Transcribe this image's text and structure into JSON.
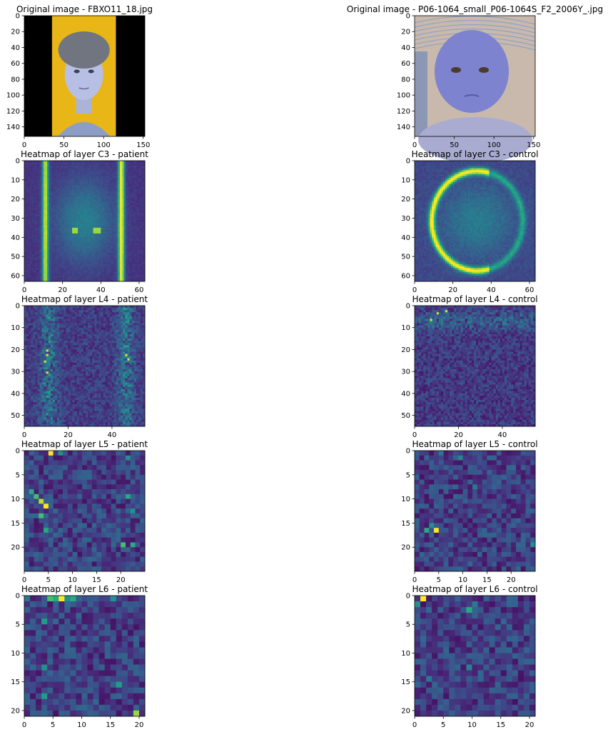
{
  "figure": {
    "background": "#ffffff",
    "colormap": "viridis",
    "colormap_stops": [
      "#440154",
      "#482878",
      "#3e4989",
      "#31688e",
      "#26828e",
      "#1f9e89",
      "#35b779",
      "#6ece58",
      "#b5de2b",
      "#fde725"
    ]
  },
  "chart_data": [
    {
      "type": "image",
      "title": "Original image - FBXO11_18.jpg",
      "content": "photo of a child with grey curly hair, blue-tinted skin, yellow background bordered by black vertical bands",
      "xlim": [
        0,
        152
      ],
      "ylim": [
        152,
        0
      ],
      "xticks": [
        0,
        50,
        100,
        150
      ],
      "yticks": [
        0,
        20,
        40,
        60,
        80,
        100,
        120,
        140
      ]
    },
    {
      "type": "image",
      "title": "Original image - P06-1064_small_P06-1064S_F2_2006Y_.jpg",
      "content": "photo of an infant with blue-tinted face lying on a knitted blanket",
      "xlim": [
        0,
        152
      ],
      "ylim": [
        152,
        0
      ],
      "xticks": [
        0,
        50,
        100,
        150
      ],
      "yticks": [
        0,
        20,
        40,
        60,
        80,
        100,
        120,
        140
      ]
    },
    {
      "type": "heatmap",
      "title": "Heatmap of layer C3 - patient",
      "grid_size": 63,
      "xlim": [
        0,
        63
      ],
      "ylim": [
        63,
        0
      ],
      "xticks": [
        0,
        20,
        40,
        60
      ],
      "yticks": [
        0,
        10,
        20,
        30,
        40,
        50,
        60
      ]
    },
    {
      "type": "heatmap",
      "title": "Heatmap of layer C3 - control",
      "grid_size": 63,
      "xlim": [
        0,
        63
      ],
      "ylim": [
        63,
        0
      ],
      "xticks": [
        0,
        20,
        40,
        60
      ],
      "yticks": [
        0,
        10,
        20,
        30,
        40,
        50,
        60
      ]
    },
    {
      "type": "heatmap",
      "title": "Heatmap of layer L4 - patient",
      "grid_size": 55,
      "xlim": [
        0,
        55
      ],
      "ylim": [
        55,
        0
      ],
      "xticks": [
        0,
        20,
        40
      ],
      "yticks": [
        0,
        10,
        20,
        30,
        40,
        50
      ]
    },
    {
      "type": "heatmap",
      "title": "Heatmap of layer L4 - control",
      "grid_size": 55,
      "xlim": [
        0,
        55
      ],
      "ylim": [
        55,
        0
      ],
      "xticks": [
        0,
        20,
        40
      ],
      "yticks": [
        0,
        10,
        20,
        30,
        40,
        50
      ]
    },
    {
      "type": "heatmap",
      "title": "Heatmap of layer L5 - patient",
      "grid_size": 25,
      "xlim": [
        0,
        25
      ],
      "ylim": [
        25,
        0
      ],
      "xticks": [
        0,
        5,
        10,
        15,
        20
      ],
      "yticks": [
        0,
        5,
        10,
        15,
        20
      ],
      "hot_cells": [
        [
          5,
          0,
          1.0
        ],
        [
          1,
          8,
          0.6
        ],
        [
          2,
          9,
          0.7
        ],
        [
          3,
          10,
          0.9
        ],
        [
          4,
          11,
          1.0
        ],
        [
          3,
          13,
          0.7
        ],
        [
          4,
          16,
          0.6
        ],
        [
          21,
          9,
          0.6
        ],
        [
          22,
          12,
          0.5
        ],
        [
          20,
          19,
          0.7
        ],
        [
          22,
          19,
          0.6
        ],
        [
          7,
          0,
          0.5
        ],
        [
          21,
          1,
          0.5
        ]
      ]
    },
    {
      "type": "heatmap",
      "title": "Heatmap of layer L5 - control",
      "grid_size": 25,
      "xlim": [
        0,
        25
      ],
      "ylim": [
        25,
        0
      ],
      "xticks": [
        0,
        5,
        10,
        15,
        20
      ],
      "yticks": [
        0,
        5,
        10,
        15,
        20
      ],
      "hot_cells": [
        [
          4,
          16,
          1.0
        ],
        [
          2,
          16,
          0.6
        ],
        [
          3,
          15,
          0.5
        ],
        [
          5,
          0,
          0.4
        ],
        [
          24,
          19,
          0.5
        ],
        [
          9,
          1,
          0.45
        ],
        [
          12,
          7,
          0.4
        ]
      ]
    },
    {
      "type": "heatmap",
      "title": "Heatmap of layer L6 - patient",
      "grid_size": 21,
      "xlim": [
        0,
        21
      ],
      "ylim": [
        21,
        0
      ],
      "xticks": [
        0,
        5,
        10,
        15,
        20
      ],
      "yticks": [
        0,
        5,
        10,
        15,
        20
      ],
      "hot_cells": [
        [
          6,
          0,
          1.0
        ],
        [
          4,
          0,
          0.7
        ],
        [
          5,
          0,
          0.6
        ],
        [
          7,
          0,
          0.5
        ],
        [
          8,
          0,
          0.6
        ],
        [
          15,
          0,
          0.5
        ],
        [
          3,
          4,
          0.55
        ],
        [
          3,
          12,
          0.5
        ],
        [
          3,
          17,
          0.55
        ],
        [
          16,
          15,
          0.55
        ],
        [
          19,
          20,
          0.85
        ],
        [
          0,
          0,
          0.4
        ]
      ]
    },
    {
      "type": "heatmap",
      "title": "Heatmap of layer L6 - control",
      "grid_size": 21,
      "xlim": [
        0,
        21
      ],
      "ylim": [
        21,
        0
      ],
      "xticks": [
        0,
        5,
        10,
        15,
        20
      ],
      "yticks": [
        0,
        5,
        10,
        15,
        20
      ],
      "hot_cells": [
        [
          1,
          0,
          1.0
        ],
        [
          0,
          1,
          0.5
        ],
        [
          9,
          2,
          0.6
        ],
        [
          10,
          1,
          0.4
        ],
        [
          2,
          14,
          0.4
        ],
        [
          9,
          12,
          0.45
        ]
      ]
    }
  ]
}
